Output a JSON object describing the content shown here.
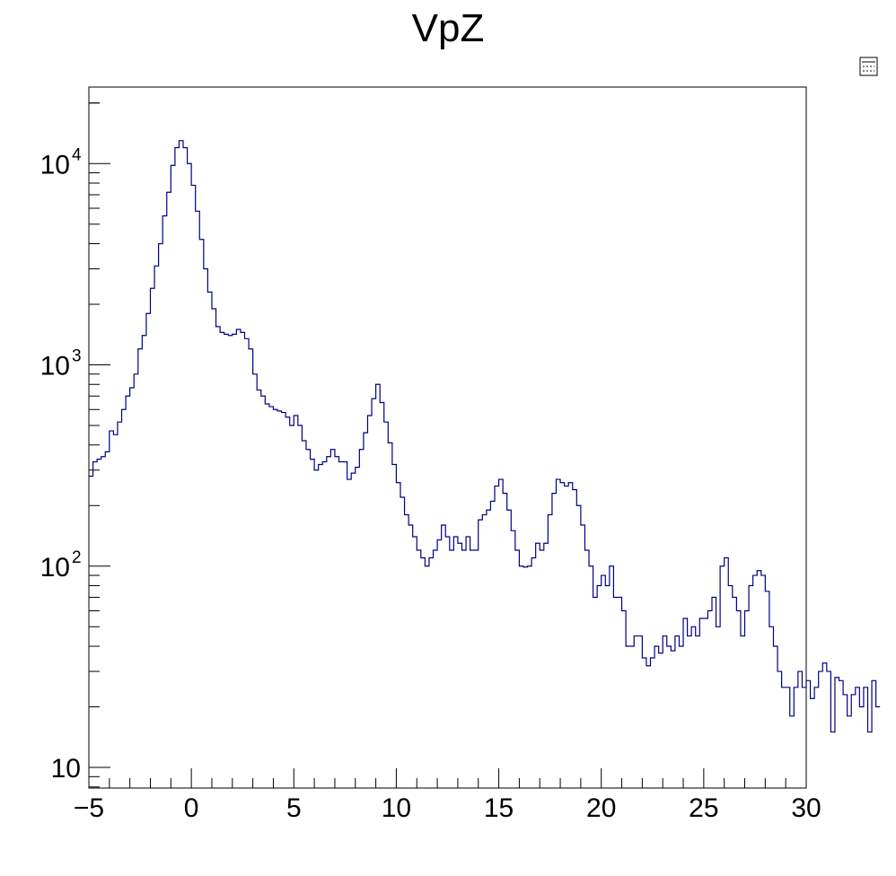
{
  "chart_data": {
    "type": "histogram",
    "title": "VpZ",
    "xlabel": "",
    "ylabel": "",
    "yscale": "log",
    "xlim": [
      -5,
      30
    ],
    "ylim": [
      7.9,
      24000
    ],
    "bin_width": 0.2,
    "grid": false,
    "legend": "stats box icon at top-right (collapsed)",
    "x_ticks": [
      {
        "value": -5,
        "label": "−5"
      },
      {
        "value": 0,
        "label": "0"
      },
      {
        "value": 5,
        "label": "5"
      },
      {
        "value": 10,
        "label": "10"
      },
      {
        "value": 15,
        "label": "15"
      },
      {
        "value": 20,
        "label": "20"
      },
      {
        "value": 25,
        "label": "25"
      },
      {
        "value": 30,
        "label": "30"
      }
    ],
    "y_ticks": [
      {
        "value": 10,
        "base": "10",
        "exp": ""
      },
      {
        "value": 100,
        "base": "10",
        "exp": "2"
      },
      {
        "value": 1000,
        "base": "10",
        "exp": "3"
      },
      {
        "value": 10000,
        "base": "10",
        "exp": "4"
      }
    ],
    "series": [
      {
        "name": "VpZ",
        "color": "#000080",
        "x_start": -5,
        "values": [
          280,
          330,
          340,
          350,
          370,
          470,
          450,
          520,
          600,
          700,
          770,
          900,
          1200,
          1400,
          1800,
          2400,
          3100,
          4000,
          5500,
          7200,
          9800,
          12000,
          13000,
          12000,
          10000,
          7800,
          5800,
          4200,
          3000,
          2300,
          1900,
          1550,
          1450,
          1420,
          1400,
          1420,
          1500,
          1450,
          1350,
          1200,
          900,
          750,
          700,
          640,
          620,
          600,
          590,
          580,
          550,
          500,
          560,
          500,
          420,
          380,
          340,
          300,
          320,
          330,
          350,
          380,
          350,
          330,
          330,
          270,
          290,
          310,
          380,
          460,
          560,
          680,
          800,
          650,
          520,
          410,
          320,
          260,
          220,
          180,
          160,
          140,
          120,
          110,
          100,
          110,
          120,
          135,
          160,
          140,
          120,
          140,
          130,
          120,
          140,
          120,
          120,
          170,
          180,
          190,
          210,
          250,
          270,
          230,
          190,
          150,
          120,
          100,
          99,
          100,
          110,
          130,
          120,
          130,
          180,
          230,
          270,
          260,
          250,
          260,
          240,
          200,
          160,
          120,
          100,
          70,
          80,
          90,
          80,
          100,
          70,
          70,
          60,
          40,
          40,
          45,
          45,
          35,
          32,
          35,
          40,
          37,
          45,
          40,
          38,
          45,
          40,
          55,
          45,
          50,
          45,
          55,
          55,
          60,
          70,
          50,
          100,
          110,
          80,
          70,
          60,
          45,
          60,
          80,
          90,
          95,
          90,
          75,
          50,
          40,
          30,
          25,
          25,
          18,
          25,
          30,
          25,
          27,
          22,
          25,
          30,
          33,
          30,
          15,
          28,
          27,
          23,
          18,
          23,
          25,
          20,
          25,
          15,
          27,
          20
        ]
      }
    ]
  }
}
